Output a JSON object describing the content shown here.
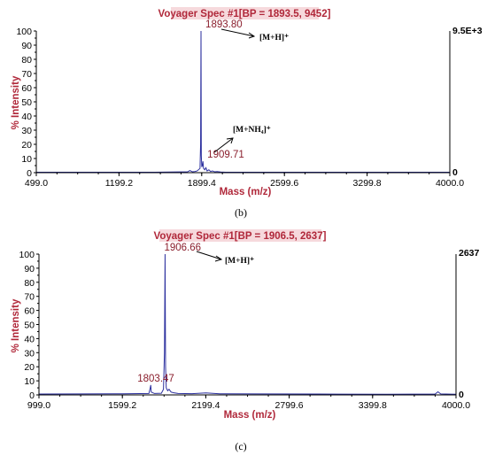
{
  "chart_data": [
    {
      "type": "line",
      "panel_label": "(b)",
      "title": "Voyager Spec #1[BP = 1893.5, 9452]",
      "xlabel": "Mass (m/z)",
      "ylabel": "% Intensity",
      "xlim": [
        499.0,
        4000.0
      ],
      "ylim": [
        0,
        100
      ],
      "x_ticks": [
        "499.0",
        "1199.2",
        "1899.4",
        "2599.6",
        "3299.8",
        "4000.0"
      ],
      "y_ticks": [
        "0",
        "10",
        "20",
        "30",
        "40",
        "50",
        "60",
        "70",
        "80",
        "90",
        "100"
      ],
      "right_max_label": "9.5E+3",
      "right_min_label": "0",
      "peaks": [
        {
          "x": 1893.8,
          "y": 100,
          "label": "1893.80"
        },
        {
          "x": 1909.71,
          "y": 8,
          "label": "1909.71"
        }
      ],
      "spectrum": [
        [
          499,
          0.3
        ],
        [
          1500,
          0.3
        ],
        [
          1780,
          0.6
        ],
        [
          1800,
          1.5
        ],
        [
          1820,
          0.6
        ],
        [
          1840,
          0.8
        ],
        [
          1860,
          1.2
        ],
        [
          1885,
          3
        ],
        [
          1890,
          20
        ],
        [
          1893.5,
          100
        ],
        [
          1896,
          12
        ],
        [
          1900,
          4
        ],
        [
          1905,
          5
        ],
        [
          1909.7,
          8
        ],
        [
          1915,
          3
        ],
        [
          1925,
          2
        ],
        [
          1935,
          3.5
        ],
        [
          1945,
          1.2
        ],
        [
          1960,
          2
        ],
        [
          1975,
          0.8
        ],
        [
          1990,
          1.2
        ],
        [
          2010,
          0.6
        ],
        [
          2030,
          0.8
        ],
        [
          2060,
          0.5
        ],
        [
          2100,
          0.3
        ],
        [
          4000,
          0.3
        ]
      ],
      "annotations": [
        "[M+H]⁺",
        "[M+NH₄]⁺"
      ]
    },
    {
      "type": "line",
      "panel_label": "(c)",
      "title": "Voyager Spec #1[BP = 1906.5, 2637]",
      "xlabel": "Mass (m/z)",
      "ylabel": "% Intensity",
      "xlim": [
        999.0,
        4000.0
      ],
      "ylim": [
        0,
        100
      ],
      "x_ticks": [
        "999.0",
        "1599.2",
        "2199.4",
        "2799.6",
        "3399.8",
        "4000.0"
      ],
      "y_ticks": [
        "0",
        "10",
        "20",
        "30",
        "40",
        "50",
        "60",
        "70",
        "80",
        "90",
        "100"
      ],
      "right_max_label": "2637",
      "right_min_label": "0",
      "peaks": [
        {
          "x": 1906.66,
          "y": 100,
          "label": "1906.66"
        },
        {
          "x": 1803.47,
          "y": 7,
          "label": "1803.47"
        }
      ],
      "spectrum": [
        [
          999,
          0.6
        ],
        [
          1300,
          0.7
        ],
        [
          1600,
          0.8
        ],
        [
          1790,
          1
        ],
        [
          1800,
          5
        ],
        [
          1803.5,
          7
        ],
        [
          1807,
          2
        ],
        [
          1830,
          1
        ],
        [
          1880,
          1.2
        ],
        [
          1895,
          4
        ],
        [
          1902,
          30
        ],
        [
          1906.5,
          100
        ],
        [
          1910,
          20
        ],
        [
          1915,
          5
        ],
        [
          1925,
          3
        ],
        [
          1935,
          4
        ],
        [
          1950,
          2
        ],
        [
          1970,
          1.5
        ],
        [
          2000,
          1
        ],
        [
          2100,
          0.9
        ],
        [
          2200,
          1.4
        ],
        [
          2300,
          0.8
        ],
        [
          2600,
          0.7
        ],
        [
          3000,
          0.6
        ],
        [
          3500,
          0.5
        ],
        [
          3850,
          0.6
        ],
        [
          3870,
          2.2
        ],
        [
          3890,
          0.7
        ],
        [
          4000,
          0.5
        ]
      ],
      "annotations": [
        "[M+H]⁺"
      ]
    }
  ]
}
